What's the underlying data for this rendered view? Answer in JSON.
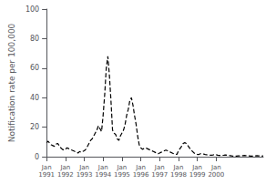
{
  "chart_data": {
    "type": "line",
    "ylabel": "Notification rate per 100,000",
    "color": "#000000",
    "line_style": "dashed",
    "grid": false,
    "ylim": [
      0,
      100
    ],
    "yticks": [
      0,
      20,
      40,
      60,
      80,
      100
    ],
    "categories": [
      "Jan\n1991",
      null,
      null,
      null,
      null,
      null,
      null,
      null,
      null,
      null,
      null,
      null,
      "Jan\n1992",
      null,
      null,
      null,
      null,
      null,
      null,
      null,
      null,
      null,
      null,
      null,
      "Jan\n1993",
      null,
      null,
      null,
      null,
      null,
      null,
      null,
      null,
      null,
      null,
      null,
      "Jan\n1994",
      null,
      null,
      null,
      null,
      null,
      null,
      null,
      null,
      null,
      null,
      null,
      "Jan\n1995",
      null,
      null,
      null,
      null,
      null,
      null,
      null,
      null,
      null,
      null,
      null,
      "Jan\n1996",
      null,
      null,
      null,
      null,
      null,
      null,
      null,
      null,
      null,
      null,
      null,
      "Jan\n1997",
      null,
      null,
      null,
      null,
      null,
      null,
      null,
      null,
      null,
      null,
      null,
      "Jan\n1998",
      null,
      null,
      null,
      null,
      null,
      null,
      null,
      null,
      null,
      null,
      null,
      "Jan\n1999",
      null,
      null,
      null,
      null,
      null,
      null,
      null,
      null,
      null,
      null,
      null,
      "Jan\n2000",
      null,
      null,
      null,
      null,
      null,
      null,
      null,
      null,
      null,
      null,
      null,
      null,
      null,
      null,
      null,
      null,
      null,
      null,
      null,
      null,
      null,
      null,
      null,
      null,
      null,
      null,
      null,
      null,
      null,
      null
    ],
    "values": [
      9.5,
      10.5,
      9.0,
      8.0,
      7.5,
      7.0,
      8.5,
      9.0,
      7.5,
      6.0,
      5.0,
      4.5,
      5.0,
      6.0,
      5.5,
      5.0,
      4.5,
      4.0,
      3.5,
      3.0,
      2.5,
      3.5,
      3.0,
      3.5,
      4.0,
      5.0,
      7.0,
      9.0,
      11.0,
      12.0,
      14.0,
      16.0,
      18.0,
      21.0,
      19.0,
      17.0,
      28.0,
      42.0,
      60.0,
      68.0,
      55.0,
      38.0,
      18.0,
      16.0,
      15.0,
      12.0,
      11.0,
      14.0,
      16.0,
      18.0,
      22.0,
      28.0,
      32.0,
      38.0,
      40.0,
      35.0,
      28.0,
      22.0,
      14.0,
      8.0,
      6.0,
      5.0,
      5.5,
      6.0,
      5.5,
      5.0,
      4.5,
      4.0,
      3.5,
      3.0,
      2.5,
      2.0,
      2.5,
      3.0,
      3.5,
      4.0,
      4.5,
      4.0,
      3.5,
      3.0,
      2.5,
      2.0,
      1.8,
      1.5,
      4.0,
      5.5,
      7.0,
      9.0,
      9.5,
      9.0,
      7.5,
      6.0,
      4.5,
      3.5,
      2.5,
      2.0,
      1.5,
      1.5,
      2.0,
      2.0,
      1.8,
      1.5,
      1.3,
      1.2,
      1.0,
      1.0,
      1.2,
      1.5,
      1.3,
      1.0,
      0.8,
      0.8,
      0.9,
      1.0,
      1.2,
      1.0,
      0.8,
      0.7,
      0.5,
      0.4,
      0.4,
      0.4,
      0.5,
      0.5,
      0.6,
      0.7,
      0.8,
      0.7,
      0.6,
      0.5,
      0.4,
      0.4,
      0.5,
      0.6,
      0.7,
      0.6,
      0.5,
      0.4,
      0.5
    ]
  }
}
